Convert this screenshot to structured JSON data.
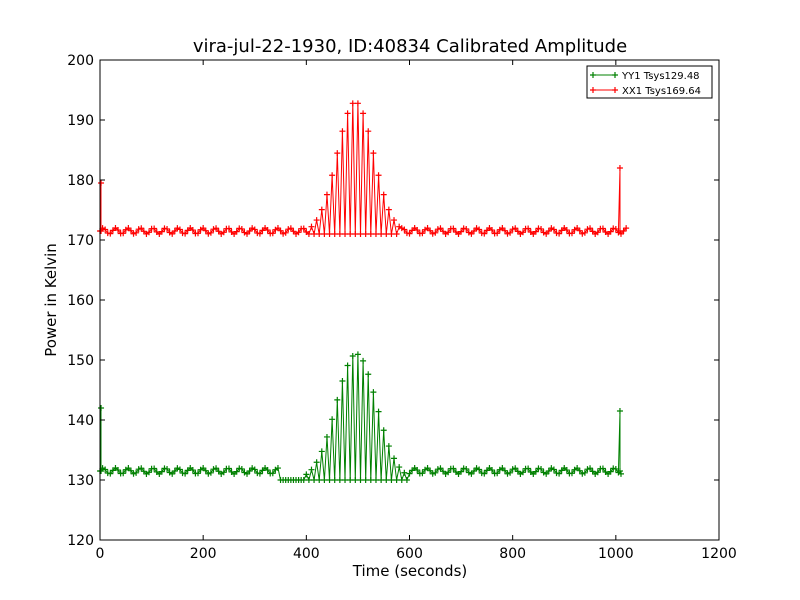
{
  "chart_data": {
    "type": "line",
    "title": "vira-jul-22-1930, ID:40834 Calibrated Amplitude",
    "xlabel": "Time (seconds)",
    "ylabel": "Power in Kelvin",
    "xlim": [
      0,
      1200
    ],
    "ylim": [
      120,
      200
    ],
    "xticks": [
      0,
      200,
      400,
      600,
      800,
      1000,
      1200
    ],
    "yticks": [
      120,
      130,
      140,
      150,
      160,
      170,
      180,
      190,
      200
    ],
    "grid": false,
    "legend_position": "top-right",
    "marker": "+",
    "series": [
      {
        "name": "YY1 Tsys129.48",
        "color": "#008000",
        "baseline": 131.5,
        "x_start": 0,
        "x_end": 1010,
        "x_step": 5,
        "spikes": [
          {
            "x": 2,
            "y": 142
          },
          {
            "x": 1008,
            "y": 141.5
          }
        ],
        "dip": {
          "x_start": 350,
          "x_end": 400,
          "level": 130
        },
        "bump": {
          "center": 497,
          "width": 55,
          "peak": 151,
          "base": 130
        }
      },
      {
        "name": "XX1 Tsys169.64",
        "color": "#ff0000",
        "baseline": 171.5,
        "x_start": 0,
        "x_end": 1020,
        "x_step": 5,
        "spikes": [
          {
            "x": 2,
            "y": 179.5
          },
          {
            "x": 1008,
            "y": 182
          }
        ],
        "dip": {
          "x_start": 0,
          "x_end": 0,
          "level": 171
        },
        "bump": {
          "center": 495,
          "width": 50,
          "peak": 193,
          "base": 171
        }
      }
    ]
  }
}
